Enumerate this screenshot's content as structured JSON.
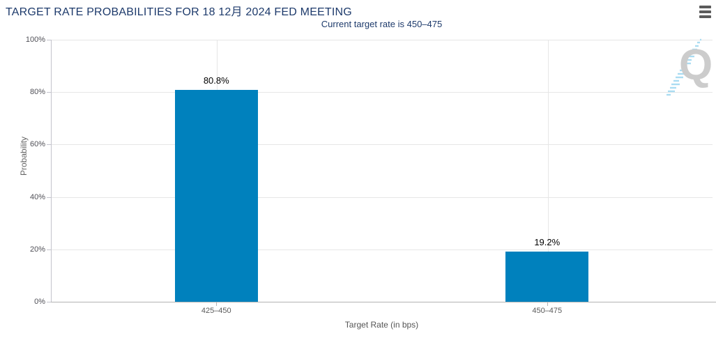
{
  "header": {
    "title": "TARGET RATE PROBABILITIES FOR 18 12月 2024 FED MEETING",
    "menu_icon": "hamburger-icon"
  },
  "subtitle": "Current target rate is 450–475",
  "watermark": {
    "letter": "Q"
  },
  "colors": {
    "title_text": "#1d3a6b",
    "bar": "#0081bd",
    "grid": "#e6e6e6",
    "axis_line": "#c3c3cc",
    "baseline": "#b3b3b3",
    "tick_label": "#4f4f56",
    "axis_title": "#666666",
    "data_label": "#000000",
    "watermark_gray": "#cccccc",
    "watermark_blue": "#aadcf2"
  },
  "chart_data": {
    "type": "bar",
    "title": "TARGET RATE PROBABILITIES FOR 18 12月 2024 FED MEETING",
    "subtitle": "Current target rate is 450–475",
    "categories": [
      "425–450",
      "450–475"
    ],
    "values": [
      80.8,
      19.2
    ],
    "value_labels": [
      "80.8%",
      "19.2%"
    ],
    "xlabel": "Target Rate (in bps)",
    "ylabel": "Probability",
    "ylim": [
      0,
      100
    ],
    "yticks": [
      0,
      20,
      40,
      60,
      80,
      100
    ],
    "ytick_labels": [
      "0%",
      "20%",
      "40%",
      "60%",
      "80%",
      "100%"
    ],
    "grid": true,
    "legend": "none"
  }
}
